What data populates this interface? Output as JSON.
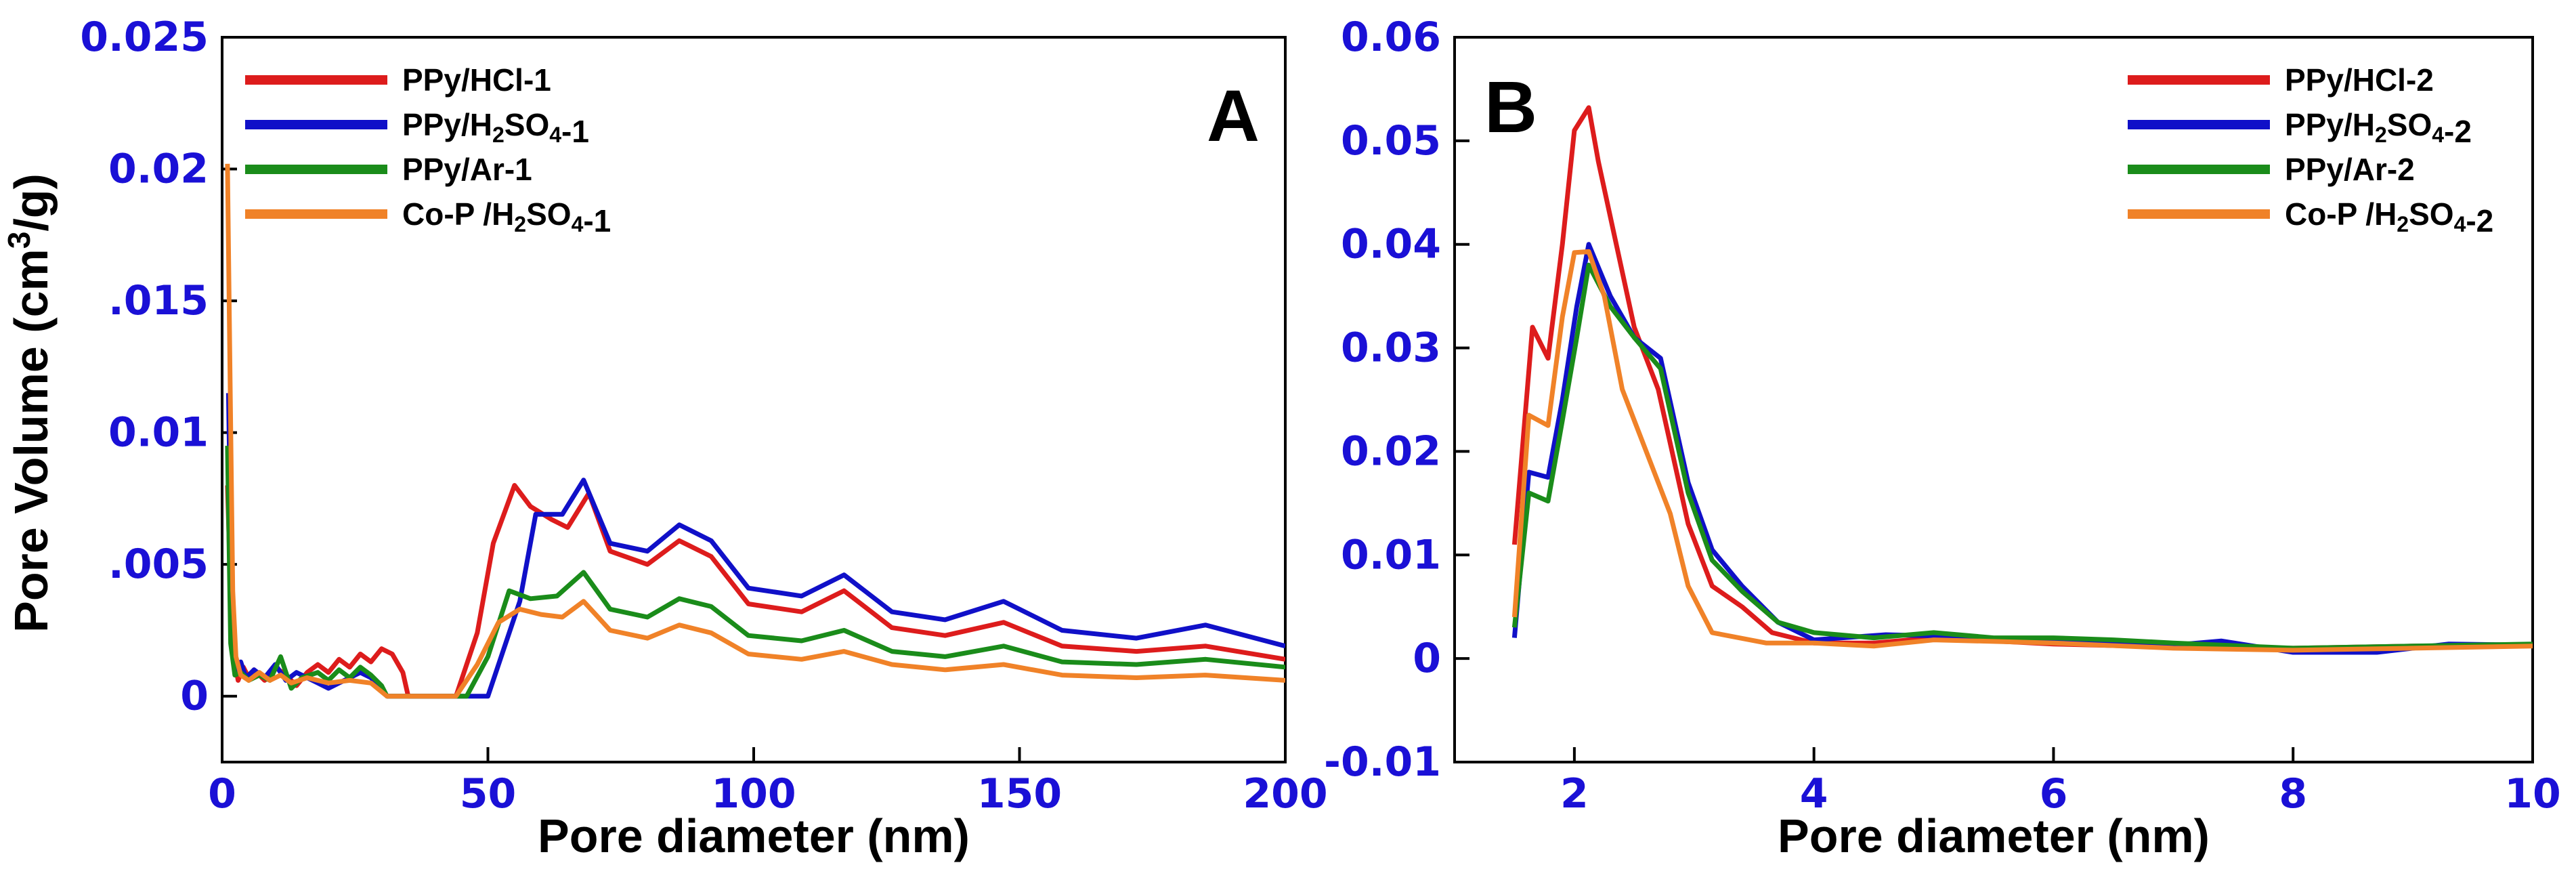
{
  "chart_data": [
    {
      "type": "line",
      "panel_label": "A",
      "xlabel": "Pore diameter (nm)",
      "ylabel": "Pore Volume (cm³/g)",
      "xlim": [
        0,
        200
      ],
      "ylim": [
        -0.0025,
        0.025
      ],
      "x_ticks": [
        0,
        50,
        100,
        150,
        200
      ],
      "x_tick_labels": [
        "0",
        "50",
        "100",
        "150",
        "200"
      ],
      "y_ticks": [
        0,
        0.005,
        0.01,
        0.015,
        0.02,
        0.025
      ],
      "y_tick_labels": [
        "0",
        ".005",
        "0.01",
        ".015",
        "0.02",
        "0.025"
      ],
      "grid": false,
      "legend_position": "top-left",
      "series": [
        {
          "name": "PPy/HCl-1",
          "color": "#dd1c1c",
          "points": [
            [
              1,
              0.008
            ],
            [
              1.6,
              0.004
            ],
            [
              2.2,
              0.0015
            ],
            [
              3,
              0.0006
            ],
            [
              4,
              0.0011
            ],
            [
              5,
              0.0007
            ],
            [
              6,
              0.001
            ],
            [
              8,
              0.0006
            ],
            [
              10,
              0.0011
            ],
            [
              12,
              0.0008
            ],
            [
              14,
              0.0004
            ],
            [
              16,
              0.0009
            ],
            [
              18,
              0.0012
            ],
            [
              20,
              0.0009
            ],
            [
              22,
              0.0014
            ],
            [
              24,
              0.0011
            ],
            [
              26,
              0.0016
            ],
            [
              28,
              0.0013
            ],
            [
              30,
              0.0018
            ],
            [
              32,
              0.0016
            ],
            [
              34,
              0.0009
            ],
            [
              35,
              0
            ],
            [
              44,
              0
            ],
            [
              48,
              0.0024
            ],
            [
              51,
              0.0058
            ],
            [
              55,
              0.008
            ],
            [
              58,
              0.0072
            ],
            [
              62,
              0.0067
            ],
            [
              65,
              0.0064
            ],
            [
              69,
              0.0077
            ],
            [
              73,
              0.0055
            ],
            [
              80,
              0.005
            ],
            [
              86,
              0.0059
            ],
            [
              92,
              0.0053
            ],
            [
              99,
              0.0035
            ],
            [
              109,
              0.0032
            ],
            [
              117,
              0.004
            ],
            [
              126,
              0.0026
            ],
            [
              136,
              0.0023
            ],
            [
              147,
              0.0028
            ],
            [
              158,
              0.0019
            ],
            [
              172,
              0.0017
            ],
            [
              185,
              0.0019
            ],
            [
              200,
              0.0014
            ]
          ]
        },
        {
          "name": "PPy/H2SO4-1",
          "color": "#1010c8",
          "points": [
            [
              1.2,
              0.0115
            ],
            [
              1.8,
              0.0035
            ],
            [
              2.6,
              0.0009
            ],
            [
              3.5,
              0.0013
            ],
            [
              4.5,
              0.0007
            ],
            [
              6,
              0.001
            ],
            [
              8,
              0.0007
            ],
            [
              10,
              0.0012
            ],
            [
              12,
              0.0006
            ],
            [
              14,
              0.0009
            ],
            [
              16,
              0.0007
            ],
            [
              18,
              0.0005
            ],
            [
              20,
              0.0003
            ],
            [
              22,
              0.0005
            ],
            [
              24,
              0.0007
            ],
            [
              26,
              0.0009
            ],
            [
              28,
              0.0007
            ],
            [
              30,
              0.0003
            ],
            [
              31,
              0
            ],
            [
              50,
              0
            ],
            [
              56,
              0.0036
            ],
            [
              59,
              0.0069
            ],
            [
              64,
              0.0069
            ],
            [
              68,
              0.0082
            ],
            [
              73,
              0.0058
            ],
            [
              80,
              0.0055
            ],
            [
              86,
              0.0065
            ],
            [
              92,
              0.0059
            ],
            [
              99,
              0.0041
            ],
            [
              109,
              0.0038
            ],
            [
              117,
              0.0046
            ],
            [
              126,
              0.0032
            ],
            [
              136,
              0.0029
            ],
            [
              147,
              0.0036
            ],
            [
              158,
              0.0025
            ],
            [
              172,
              0.0022
            ],
            [
              185,
              0.0027
            ],
            [
              200,
              0.0019
            ]
          ]
        },
        {
          "name": "PPy/Ar-1",
          "color": "#1a8c1a",
          "points": [
            [
              1,
              0.0095
            ],
            [
              1.6,
              0.002
            ],
            [
              2.4,
              0.0008
            ],
            [
              3.5,
              0.0009
            ],
            [
              5,
              0.0006
            ],
            [
              7,
              0.0008
            ],
            [
              9,
              0.0006
            ],
            [
              11,
              0.0015
            ],
            [
              13,
              0.0003
            ],
            [
              15,
              0.0007
            ],
            [
              18,
              0.0009
            ],
            [
              20,
              0.0006
            ],
            [
              22,
              0.001
            ],
            [
              24,
              0.0007
            ],
            [
              26,
              0.0011
            ],
            [
              28,
              0.0008
            ],
            [
              30,
              0.0004
            ],
            [
              31,
              0
            ],
            [
              46,
              0
            ],
            [
              50,
              0.0015
            ],
            [
              54,
              0.004
            ],
            [
              58,
              0.0037
            ],
            [
              63,
              0.0038
            ],
            [
              68,
              0.0047
            ],
            [
              73,
              0.0033
            ],
            [
              80,
              0.003
            ],
            [
              86,
              0.0037
            ],
            [
              92,
              0.0034
            ],
            [
              99,
              0.0023
            ],
            [
              109,
              0.0021
            ],
            [
              117,
              0.0025
            ],
            [
              126,
              0.0017
            ],
            [
              136,
              0.0015
            ],
            [
              147,
              0.0019
            ],
            [
              158,
              0.0013
            ],
            [
              172,
              0.0012
            ],
            [
              185,
              0.0014
            ],
            [
              200,
              0.0011
            ]
          ]
        },
        {
          "name": "Co-P /H2SO4-1",
          "color": "#f08228",
          "points": [
            [
              1,
              0.0202
            ],
            [
              1.5,
              0.012
            ],
            [
              2,
              0.004
            ],
            [
              2.6,
              0.0015
            ],
            [
              3.5,
              0.0008
            ],
            [
              5,
              0.0006
            ],
            [
              7,
              0.0009
            ],
            [
              9,
              0.0006
            ],
            [
              11,
              0.0008
            ],
            [
              13,
              0.0005
            ],
            [
              16,
              0.0007
            ],
            [
              20,
              0.0005
            ],
            [
              24,
              0.0006
            ],
            [
              28,
              0.0005
            ],
            [
              31,
              0
            ],
            [
              44,
              0
            ],
            [
              48,
              0.0012
            ],
            [
              52,
              0.0028
            ],
            [
              56,
              0.0033
            ],
            [
              60,
              0.0031
            ],
            [
              64,
              0.003
            ],
            [
              68,
              0.0036
            ],
            [
              73,
              0.0025
            ],
            [
              80,
              0.0022
            ],
            [
              86,
              0.0027
            ],
            [
              92,
              0.0024
            ],
            [
              99,
              0.0016
            ],
            [
              109,
              0.0014
            ],
            [
              117,
              0.0017
            ],
            [
              126,
              0.0012
            ],
            [
              136,
              0.001
            ],
            [
              147,
              0.0012
            ],
            [
              158,
              0.0008
            ],
            [
              172,
              0.0007
            ],
            [
              185,
              0.0008
            ],
            [
              200,
              0.0006
            ]
          ]
        }
      ]
    },
    {
      "type": "line",
      "panel_label": "B",
      "xlabel": "Pore diameter (nm)",
      "ylabel": "",
      "xlim": [
        1,
        10
      ],
      "ylim": [
        -0.01,
        0.06
      ],
      "x_ticks": [
        2,
        4,
        6,
        8,
        10
      ],
      "x_tick_labels": [
        "2",
        "4",
        "6",
        "8",
        "10"
      ],
      "y_ticks": [
        -0.01,
        0,
        0.01,
        0.02,
        0.03,
        0.04,
        0.05,
        0.06
      ],
      "y_tick_labels": [
        "-0.01",
        "0",
        "0.01",
        "0.02",
        "0.03",
        "0.04",
        "0.05",
        "0.06"
      ],
      "grid": false,
      "legend_position": "top-right",
      "series": [
        {
          "name": "PPy/HCl-2",
          "color": "#dd1c1c",
          "points": [
            [
              1.5,
              0.011
            ],
            [
              1.65,
              0.032
            ],
            [
              1.78,
              0.029
            ],
            [
              1.9,
              0.04
            ],
            [
              2.0,
              0.051
            ],
            [
              2.12,
              0.0532
            ],
            [
              2.2,
              0.048
            ],
            [
              2.35,
              0.04
            ],
            [
              2.5,
              0.032
            ],
            [
              2.7,
              0.026
            ],
            [
              2.95,
              0.013
            ],
            [
              3.15,
              0.007
            ],
            [
              3.4,
              0.005
            ],
            [
              3.65,
              0.0025
            ],
            [
              4.0,
              0.0015
            ],
            [
              4.5,
              0.0015
            ],
            [
              5.0,
              0.002
            ],
            [
              5.5,
              0.0017
            ],
            [
              6.0,
              0.0014
            ],
            [
              7.0,
              0.0011
            ],
            [
              8.0,
              0.001
            ],
            [
              9.0,
              0.0012
            ],
            [
              10.0,
              0.0013
            ]
          ]
        },
        {
          "name": "PPy/H2SO4-2",
          "color": "#1010c8",
          "points": [
            [
              1.5,
              0.002
            ],
            [
              1.62,
              0.018
            ],
            [
              1.78,
              0.0175
            ],
            [
              1.9,
              0.025
            ],
            [
              2.02,
              0.034
            ],
            [
              2.12,
              0.04
            ],
            [
              2.3,
              0.035
            ],
            [
              2.5,
              0.031
            ],
            [
              2.72,
              0.029
            ],
            [
              2.95,
              0.017
            ],
            [
              3.15,
              0.0105
            ],
            [
              3.4,
              0.007
            ],
            [
              3.7,
              0.0035
            ],
            [
              4.0,
              0.0018
            ],
            [
              4.6,
              0.0023
            ],
            [
              5.0,
              0.0022
            ],
            [
              5.5,
              0.0018
            ],
            [
              6.0,
              0.0016
            ],
            [
              7.0,
              0.0013
            ],
            [
              7.4,
              0.0017
            ],
            [
              8.0,
              0.0006
            ],
            [
              8.7,
              0.0006
            ],
            [
              9.3,
              0.0014
            ],
            [
              10.0,
              0.0013
            ]
          ]
        },
        {
          "name": "PPy/Ar-2",
          "color": "#1a8c1a",
          "points": [
            [
              1.5,
              0.003
            ],
            [
              1.62,
              0.016
            ],
            [
              1.78,
              0.0152
            ],
            [
              1.9,
              0.023
            ],
            [
              2.02,
              0.031
            ],
            [
              2.12,
              0.038
            ],
            [
              2.3,
              0.034
            ],
            [
              2.5,
              0.031
            ],
            [
              2.72,
              0.028
            ],
            [
              2.95,
              0.016
            ],
            [
              3.15,
              0.0095
            ],
            [
              3.4,
              0.0065
            ],
            [
              3.7,
              0.0035
            ],
            [
              4.0,
              0.0025
            ],
            [
              4.5,
              0.002
            ],
            [
              5.0,
              0.0025
            ],
            [
              5.5,
              0.002
            ],
            [
              6.0,
              0.002
            ],
            [
              6.5,
              0.0018
            ],
            [
              7.0,
              0.0015
            ],
            [
              8.0,
              0.001
            ],
            [
              9.0,
              0.0012
            ],
            [
              10.0,
              0.0014
            ]
          ]
        },
        {
          "name": "Co-P /H2SO4-2",
          "color": "#f08228",
          "points": [
            [
              1.5,
              0.004
            ],
            [
              1.62,
              0.0235
            ],
            [
              1.78,
              0.0225
            ],
            [
              1.9,
              0.033
            ],
            [
              2.0,
              0.0392
            ],
            [
              2.12,
              0.0393
            ],
            [
              2.25,
              0.035
            ],
            [
              2.4,
              0.026
            ],
            [
              2.6,
              0.02
            ],
            [
              2.8,
              0.014
            ],
            [
              2.95,
              0.007
            ],
            [
              3.15,
              0.0025
            ],
            [
              3.6,
              0.0015
            ],
            [
              4.0,
              0.0015
            ],
            [
              4.5,
              0.0012
            ],
            [
              5.0,
              0.0018
            ],
            [
              6.0,
              0.0015
            ],
            [
              7.0,
              0.001
            ],
            [
              8.0,
              0.0008
            ],
            [
              9.0,
              0.001
            ],
            [
              10.0,
              0.0012
            ]
          ]
        }
      ]
    }
  ]
}
